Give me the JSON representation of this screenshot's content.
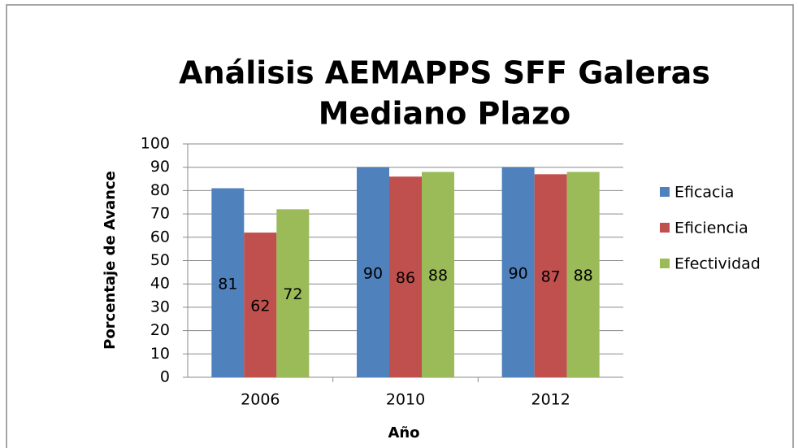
{
  "chart_data": {
    "type": "bar",
    "title": [
      "Análisis AEMAPPS SFF Galeras",
      "Mediano Plazo"
    ],
    "x_label": "Año",
    "y_label": "Porcentaje de Avance",
    "categories": [
      "2006",
      "2010",
      "2012"
    ],
    "series": [
      {
        "name": "Eficacia",
        "color": "#4f81bd",
        "values": [
          81,
          90,
          90
        ]
      },
      {
        "name": "Eficiencia",
        "color": "#c0504d",
        "values": [
          62,
          86,
          87
        ]
      },
      {
        "name": "Efectividad",
        "color": "#9bbb59",
        "values": [
          72,
          88,
          88
        ]
      }
    ],
    "ylim": [
      0,
      100
    ],
    "yticks": [
      0,
      10,
      20,
      30,
      40,
      50,
      60,
      70,
      80,
      90,
      100
    ],
    "grid": true,
    "legend": "right",
    "data_labels": true
  }
}
